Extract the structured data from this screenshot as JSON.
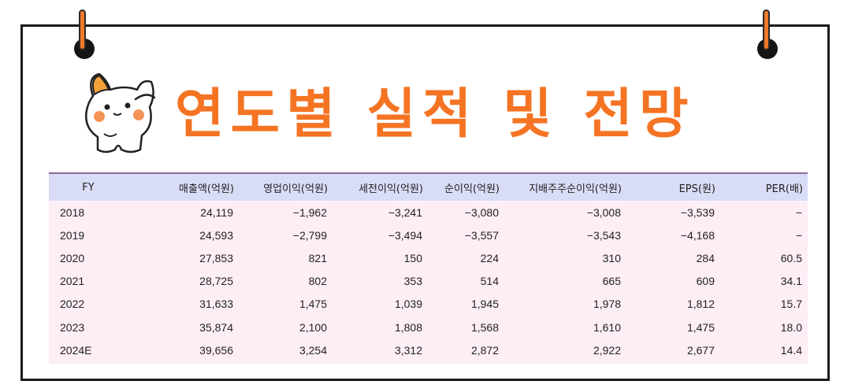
{
  "title": "연도별 실적 및 전망",
  "colors": {
    "title": "#f57423",
    "header_bg": "#d9dcf6",
    "table_bg": "#fdeef6",
    "pin": "#f07a2a"
  },
  "table": {
    "headers": [
      "FY",
      "매출액(억원)",
      "영업이익(억원)",
      "세전이익(억원)",
      "순이익(억원)",
      "지배주주순이익(억원)",
      "EPS(원)",
      "PER(배)"
    ],
    "rows": [
      [
        "2018",
        "24,119",
        "−1,962",
        "−3,241",
        "−3,080",
        "−3,008",
        "−3,539",
        "−"
      ],
      [
        "2019",
        "24,593",
        "−2,799",
        "−3,494",
        "−3,557",
        "−3,543",
        "−4,168",
        "−"
      ],
      [
        "2020",
        "27,853",
        "821",
        "150",
        "224",
        "310",
        "284",
        "60.5"
      ],
      [
        "2021",
        "28,725",
        "802",
        "353",
        "514",
        "665",
        "609",
        "34.1"
      ],
      [
        "2022",
        "31,633",
        "1,475",
        "1,039",
        "1,945",
        "1,978",
        "1,812",
        "15.7"
      ],
      [
        "2023",
        "35,874",
        "2,100",
        "1,808",
        "1,568",
        "1,610",
        "1,475",
        "18.0"
      ],
      [
        "2024E",
        "39,656",
        "3,254",
        "3,312",
        "2,872",
        "2,922",
        "2,677",
        "14.4"
      ]
    ]
  }
}
